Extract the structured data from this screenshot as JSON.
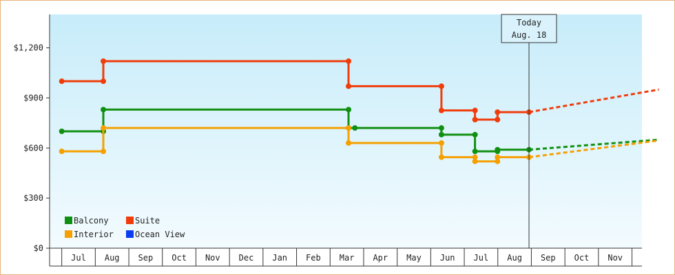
{
  "chart_data": {
    "type": "line",
    "title": "",
    "xlabel": "",
    "ylabel": "",
    "x_tick_labels": [
      "Jul",
      "Aug",
      "Sep",
      "Oct",
      "Nov",
      "Dec",
      "Jan",
      "Feb",
      "Mar",
      "Apr",
      "May",
      "Jun",
      "Jul",
      "Aug",
      "Sep",
      "Oct",
      "Nov"
    ],
    "ylim": [
      0,
      1400
    ],
    "y_ticks": [
      0,
      300,
      600,
      900,
      1200
    ],
    "y_tick_labels": [
      "$0",
      "$300",
      "$600",
      "$900",
      "$1,200"
    ],
    "grid": false,
    "legend_placement": "bottom-left",
    "today_marker": {
      "line1": "Today",
      "line2": "Aug. 18",
      "x": 13.43
    },
    "series": [
      {
        "name": "Balcony",
        "color": "#109010",
        "points": [
          [
            -0.5,
            700
          ],
          [
            0.74,
            700
          ],
          [
            0.74,
            830
          ],
          [
            8.05,
            830
          ],
          [
            8.05,
            720
          ],
          [
            8.24,
            720
          ],
          [
            10.82,
            720
          ],
          [
            10.82,
            680
          ],
          [
            11.82,
            680
          ],
          [
            11.82,
            580
          ],
          [
            12.49,
            580
          ],
          [
            12.49,
            590
          ],
          [
            13.43,
            590
          ]
        ],
        "projection": [
          [
            13.43,
            590
          ],
          [
            17.3,
            650
          ]
        ]
      },
      {
        "name": "Suite",
        "color": "#f03c0a",
        "points": [
          [
            -0.5,
            1000
          ],
          [
            0.74,
            1000
          ],
          [
            0.74,
            1120
          ],
          [
            8.05,
            1120
          ],
          [
            8.05,
            970
          ],
          [
            10.82,
            970
          ],
          [
            10.82,
            825
          ],
          [
            11.82,
            825
          ],
          [
            11.82,
            770
          ],
          [
            12.49,
            770
          ],
          [
            12.49,
            815
          ],
          [
            13.43,
            815
          ]
        ],
        "projection": [
          [
            13.43,
            815
          ],
          [
            17.3,
            950
          ]
        ]
      },
      {
        "name": "Interior",
        "color": "#f5a000",
        "points": [
          [
            -0.5,
            580
          ],
          [
            0.74,
            580
          ],
          [
            0.74,
            720
          ],
          [
            8.05,
            720
          ],
          [
            8.05,
            630
          ],
          [
            10.82,
            630
          ],
          [
            10.82,
            545
          ],
          [
            11.82,
            545
          ],
          [
            11.82,
            520
          ],
          [
            12.49,
            520
          ],
          [
            12.49,
            545
          ],
          [
            13.43,
            545
          ]
        ],
        "projection": [
          [
            13.43,
            545
          ],
          [
            17.3,
            645
          ]
        ]
      },
      {
        "name": "Ocean View",
        "color": "#0a3cf0",
        "points": [],
        "projection": []
      }
    ],
    "legend": [
      {
        "name": "Balcony",
        "color": "#109010"
      },
      {
        "name": "Suite",
        "color": "#f03c0a"
      },
      {
        "name": "Interior",
        "color": "#f5a000"
      },
      {
        "name": "Ocean View",
        "color": "#0a3cf0"
      }
    ]
  }
}
